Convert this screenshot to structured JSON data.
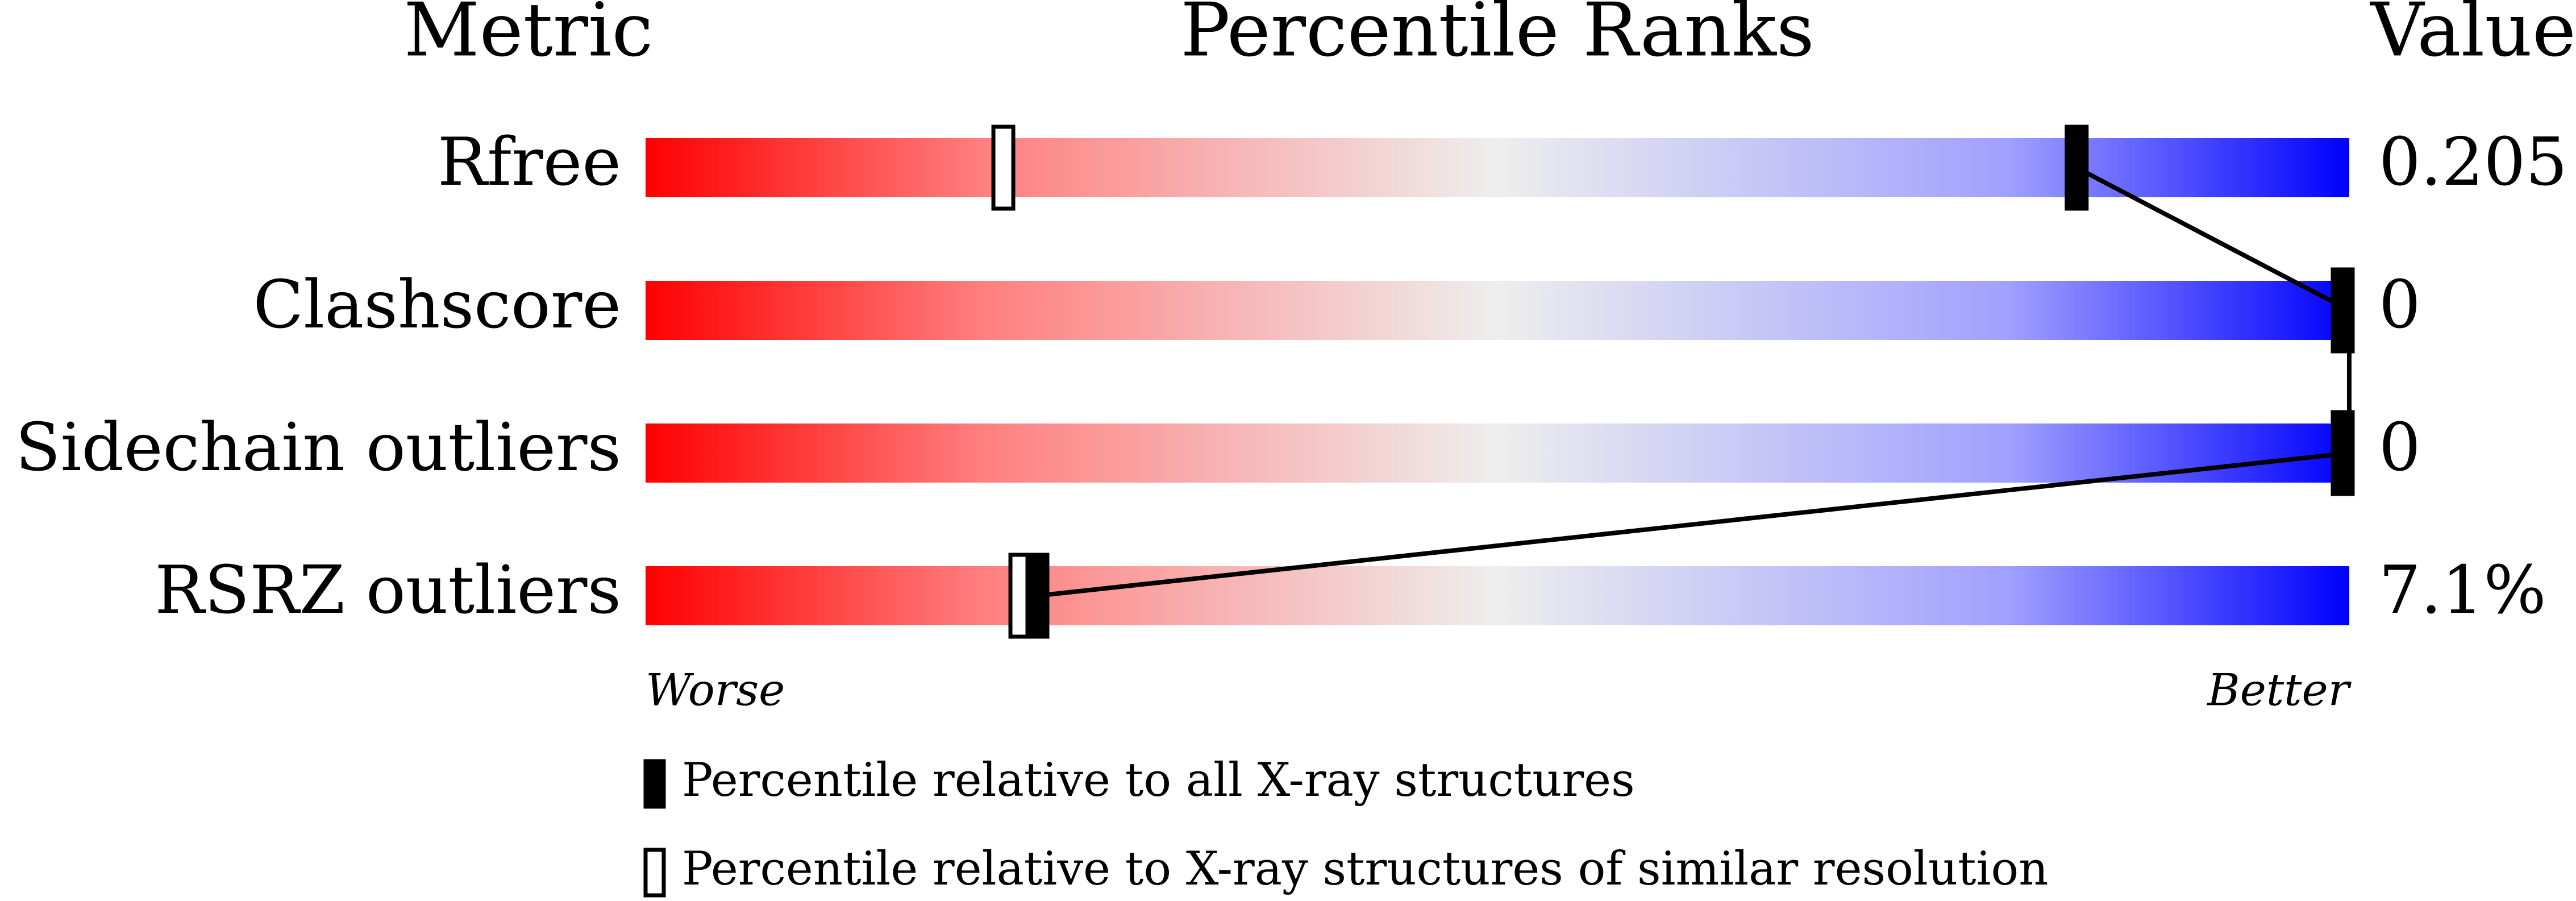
{
  "chart_data": {
    "type": "percentile-slider",
    "headers": [
      "Metric",
      "Percentile Ranks",
      "Value"
    ],
    "categories": [
      "Rfree",
      "Clashscore",
      "Sidechain outliers",
      "RSRZ outliers"
    ],
    "values": [
      0.205,
      0,
      0,
      7.1
    ],
    "value_labels": [
      "0.205",
      "0",
      "0",
      "7.1%"
    ],
    "xlim": [
      0,
      100
    ],
    "axis_labels": [
      "Worse",
      "Better"
    ],
    "series": [
      {
        "name": "Percentile relative to all X-ray structures",
        "color": "#000000",
        "filled": true,
        "values": [
          84,
          100,
          100,
          23
        ]
      },
      {
        "name": "Percentile relative to X-ray structures of similar resolution",
        "color": "#000000",
        "filled": false,
        "values": [
          21,
          100,
          100,
          22
        ]
      }
    ]
  }
}
